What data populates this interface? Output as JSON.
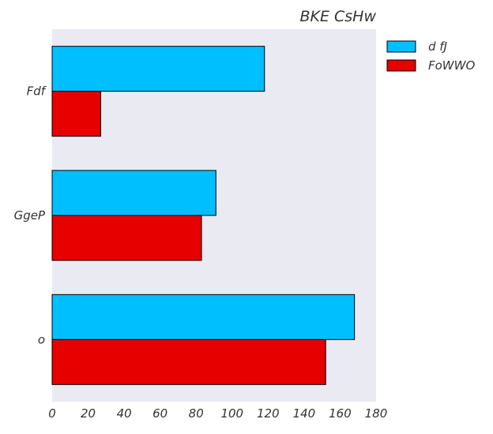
{
  "chart_data": {
    "type": "bar",
    "orientation": "horizontal",
    "title": "BKE CsHw",
    "xlabel": "",
    "ylabel": "",
    "categories": [
      "Fdf",
      "GgeP",
      "o"
    ],
    "series": [
      {
        "name": "d fJ",
        "values": [
          118,
          91,
          168
        ]
      },
      {
        "name": "FoWWO",
        "values": [
          27,
          83,
          152
        ]
      }
    ],
    "xlim": [
      0,
      180
    ],
    "xticks": [
      0,
      20,
      40,
      60,
      80,
      100,
      120,
      140,
      160,
      180
    ],
    "grid": false,
    "legend_position": "top-right, outside plot",
    "colors": {
      "series": [
        "#00BFFF",
        "#E60000"
      ],
      "plot_background": "#EAEAF2",
      "text": "#333333",
      "bar_edge": "#000000"
    }
  }
}
